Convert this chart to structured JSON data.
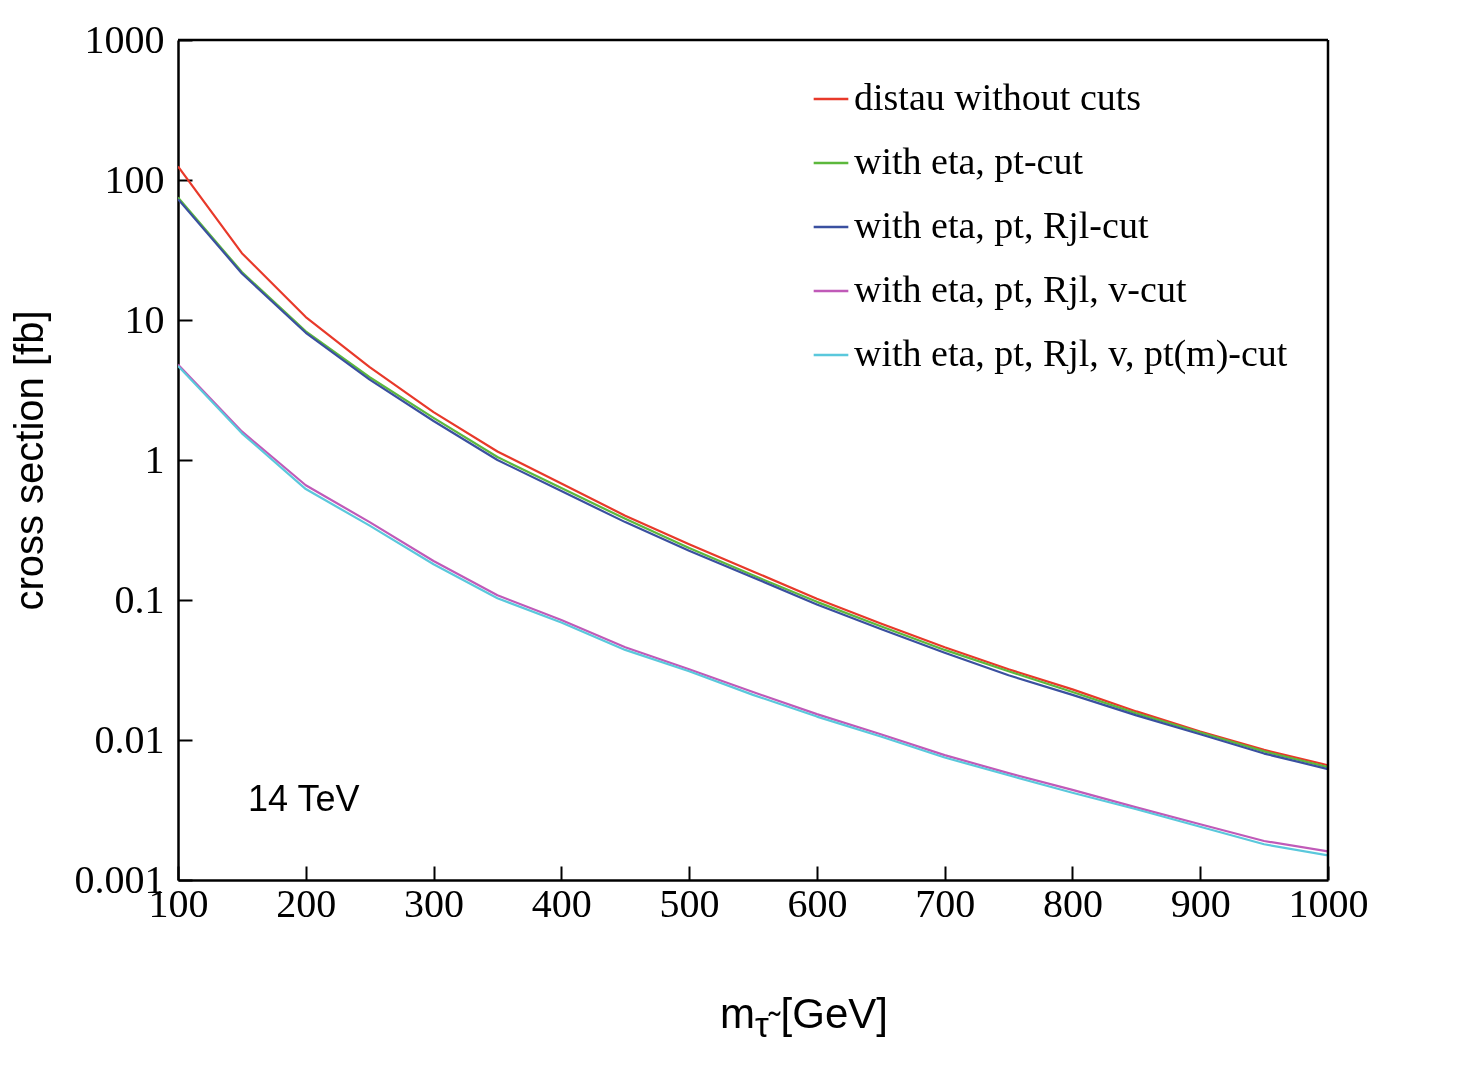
{
  "chart_data": {
    "type": "line",
    "xlabel": "m$_{τ̃}$ [GeV]",
    "ylabel": "cross section [fb]",
    "x": [
      100,
      150,
      200,
      250,
      300,
      350,
      400,
      450,
      500,
      550,
      600,
      650,
      700,
      750,
      800,
      850,
      900,
      950,
      1000
    ],
    "xlim": [
      100,
      1000
    ],
    "xticks": [
      100,
      200,
      300,
      400,
      500,
      600,
      700,
      800,
      900,
      1000
    ],
    "ylim": [
      0.001,
      1000
    ],
    "yticks": [
      0.001,
      0.01,
      0.1,
      1,
      10,
      100,
      1000
    ],
    "log": true,
    "grid": false,
    "legend": "top right",
    "line_style": "solid",
    "annotations": [
      "14 TeV"
    ],
    "series": [
      {
        "name": "distau without cuts",
        "color": "#e8392a",
        "values": [
          125,
          30,
          10.5,
          4.6,
          2.2,
          1.15,
          0.68,
          0.4,
          0.25,
          0.16,
          0.102,
          0.068,
          0.046,
          0.032,
          0.023,
          0.016,
          0.0115,
          0.0085,
          0.0066
        ]
      },
      {
        "name": "with eta, pt-cut",
        "color": "#5cb83c",
        "values": [
          75,
          22,
          8.3,
          3.9,
          2.0,
          1.05,
          0.63,
          0.38,
          0.235,
          0.15,
          0.097,
          0.065,
          0.044,
          0.031,
          0.022,
          0.0155,
          0.0113,
          0.0083,
          0.0064
        ]
      },
      {
        "name": "with eta, pt, Rjl-cut",
        "color": "#3a50a0",
        "values": [
          73,
          21.5,
          8.1,
          3.75,
          1.9,
          1.0,
          0.6,
          0.36,
          0.225,
          0.145,
          0.093,
          0.062,
          0.042,
          0.029,
          0.021,
          0.015,
          0.011,
          0.008,
          0.0062
        ]
      },
      {
        "name": "with eta, pt, Rjl, v-cut",
        "color": "#c05ab8",
        "values": [
          4.8,
          1.6,
          0.66,
          0.36,
          0.19,
          0.108,
          0.072,
          0.046,
          0.032,
          0.022,
          0.0153,
          0.011,
          0.0078,
          0.0058,
          0.0044,
          0.0033,
          0.0025,
          0.0019,
          0.0016
        ]
      },
      {
        "name": "with eta, pt, Rjl, v, pt(m)-cut",
        "color": "#5ac8dc",
        "values": [
          4.7,
          1.55,
          0.62,
          0.34,
          0.18,
          0.103,
          0.069,
          0.044,
          0.031,
          0.021,
          0.0147,
          0.0106,
          0.0075,
          0.0056,
          0.0042,
          0.0032,
          0.0024,
          0.0018,
          0.0015
        ]
      }
    ]
  }
}
